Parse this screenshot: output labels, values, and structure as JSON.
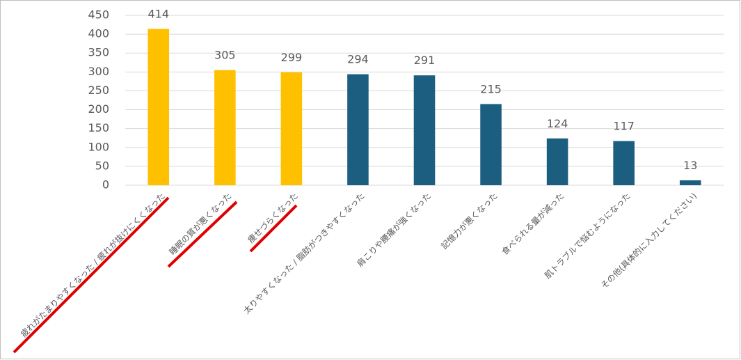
{
  "chart_data": {
    "type": "bar",
    "categories": [
      "疲れがたまりやすくなった / 疲れが抜けにくくなった",
      "睡眠の質が悪くなった",
      "痩せづらくなった",
      "太りやすくなった / 脂肪がつきやすくなった",
      "肩こりや腰痛が強くなった",
      "記憶力が悪くなった",
      "食べられる量が減った",
      "肌トラブルで悩むようになった",
      "その他(具体的に入力してください)"
    ],
    "values": [
      414,
      305,
      299,
      294,
      291,
      215,
      124,
      117,
      13
    ],
    "colors": [
      "#ffc000",
      "#ffc000",
      "#ffc000",
      "#1b5e80",
      "#1b5e80",
      "#1b5e80",
      "#1b5e80",
      "#1b5e80",
      "#1b5e80"
    ],
    "ylim": [
      0,
      450
    ],
    "yticks": [
      0,
      50,
      100,
      150,
      200,
      250,
      300,
      350,
      400,
      450
    ],
    "grid": true
  }
}
